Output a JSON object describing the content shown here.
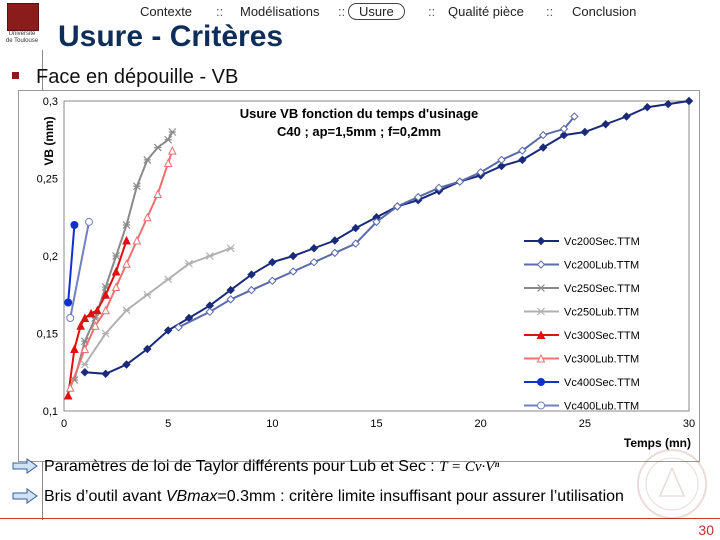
{
  "logo": {
    "line1": "Université",
    "line2": "de Toulouse"
  },
  "nav": {
    "items": [
      "Contexte",
      "Modélisations",
      "Usure",
      "Qualité pièce",
      "Conclusion"
    ],
    "separator": "::",
    "active": "Usure"
  },
  "title": "Usure - Critères",
  "subtitle": "Face en dépouille - VB",
  "bullets": [
    {
      "text": "Paramètres de loi de Taylor différents pour Lub et Sec : ",
      "formula": "T = Cv·Vⁿ"
    },
    {
      "text_before": "Bris d’outil avant ",
      "emphasis": "VBmax",
      "text_after": "=0.3mm : critère limite insuffisant pour assurer l’utilisation"
    }
  ],
  "page_number": "30",
  "chart_data": {
    "type": "line",
    "title": "Usure VB fonction du temps d'usinage",
    "subtitle": "C40 ; ap=1,5mm ; f=0,2mm",
    "xlabel": "Temps (mn)",
    "ylabel": "VB (mm)",
    "xlim": [
      0,
      30
    ],
    "ylim": [
      0.1,
      0.3
    ],
    "xticks": [
      0,
      5,
      10,
      15,
      20,
      25,
      30
    ],
    "yticks": [
      0.1,
      0.15,
      0.2,
      0.25,
      0.3
    ],
    "ytick_labels": [
      "0,1",
      "0,15",
      "0,2",
      "0,25",
      "0,3"
    ],
    "grid": true,
    "legend_position": "right",
    "series": [
      {
        "name": "Vc200Sec.TTM",
        "color": "#1a2a7a",
        "marker": "diamond-filled",
        "dash": false,
        "x": [
          1,
          2,
          3,
          4,
          5,
          6,
          7,
          8,
          9,
          10,
          11,
          12,
          13,
          14,
          15,
          16,
          17,
          18,
          19,
          20,
          21,
          22,
          23,
          24,
          25,
          26,
          27,
          28,
          29,
          30
        ],
        "y": [
          0.125,
          0.124,
          0.13,
          0.14,
          0.152,
          0.16,
          0.168,
          0.178,
          0.188,
          0.196,
          0.2,
          0.205,
          0.21,
          0.218,
          0.225,
          0.232,
          0.236,
          0.242,
          0.248,
          0.252,
          0.258,
          0.262,
          0.27,
          0.278,
          0.28,
          0.285,
          0.29,
          0.296,
          0.298,
          0.3
        ]
      },
      {
        "name": "Vc200Lub.TTM",
        "color": "#5a6aaa",
        "marker": "diamond-open",
        "dash": false,
        "x": [
          5.5,
          7,
          8,
          9,
          10,
          11,
          12,
          13,
          14,
          15,
          16,
          17,
          18,
          19,
          20,
          21,
          22,
          23,
          24,
          24.5
        ],
        "y": [
          0.154,
          0.164,
          0.172,
          0.178,
          0.184,
          0.19,
          0.196,
          0.202,
          0.208,
          0.222,
          0.232,
          0.238,
          0.244,
          0.248,
          0.254,
          0.262,
          0.268,
          0.278,
          0.282,
          0.29
        ]
      },
      {
        "name": "Vc250Sec.TTM",
        "color": "#8a8a8a",
        "marker": "star",
        "dash": false,
        "x": [
          0.5,
          1,
          1.5,
          2,
          2.5,
          3,
          3.5,
          4,
          4.5,
          5,
          5.2
        ],
        "y": [
          0.12,
          0.145,
          0.16,
          0.18,
          0.2,
          0.22,
          0.245,
          0.262,
          0.27,
          0.275,
          0.28
        ]
      },
      {
        "name": "Vc250Lub.TTM",
        "color": "#b0b0b0",
        "marker": "star",
        "dash": false,
        "x": [
          1,
          2,
          3,
          4,
          5,
          6,
          7,
          8
        ],
        "y": [
          0.13,
          0.15,
          0.165,
          0.175,
          0.185,
          0.195,
          0.2,
          0.205
        ]
      },
      {
        "name": "Vc300Sec.TTM",
        "color": "#e01010",
        "marker": "triangle-filled",
        "dash": false,
        "x": [
          0.2,
          0.5,
          0.8,
          1,
          1.3,
          1.6,
          2,
          2.5,
          3
        ],
        "y": [
          0.11,
          0.14,
          0.155,
          0.16,
          0.163,
          0.165,
          0.175,
          0.19,
          0.21
        ]
      },
      {
        "name": "Vc300Lub.TTM",
        "color": "#ee7070",
        "marker": "triangle-open",
        "dash": false,
        "x": [
          0.3,
          1,
          1.5,
          2,
          2.5,
          3,
          3.5,
          4,
          4.5,
          5,
          5.2
        ],
        "y": [
          0.115,
          0.14,
          0.155,
          0.165,
          0.18,
          0.195,
          0.21,
          0.225,
          0.24,
          0.26,
          0.268
        ]
      },
      {
        "name": "Vc400Sec.TTM",
        "color": "#1030d0",
        "marker": "circle-filled",
        "dash": false,
        "x": [
          0.2,
          0.5
        ],
        "y": [
          0.17,
          0.22
        ]
      },
      {
        "name": "Vc400Lub.TTM",
        "color": "#7080c0",
        "marker": "circle-open",
        "dash": false,
        "x": [
          0.3,
          1.2
        ],
        "y": [
          0.16,
          0.222
        ]
      }
    ]
  }
}
